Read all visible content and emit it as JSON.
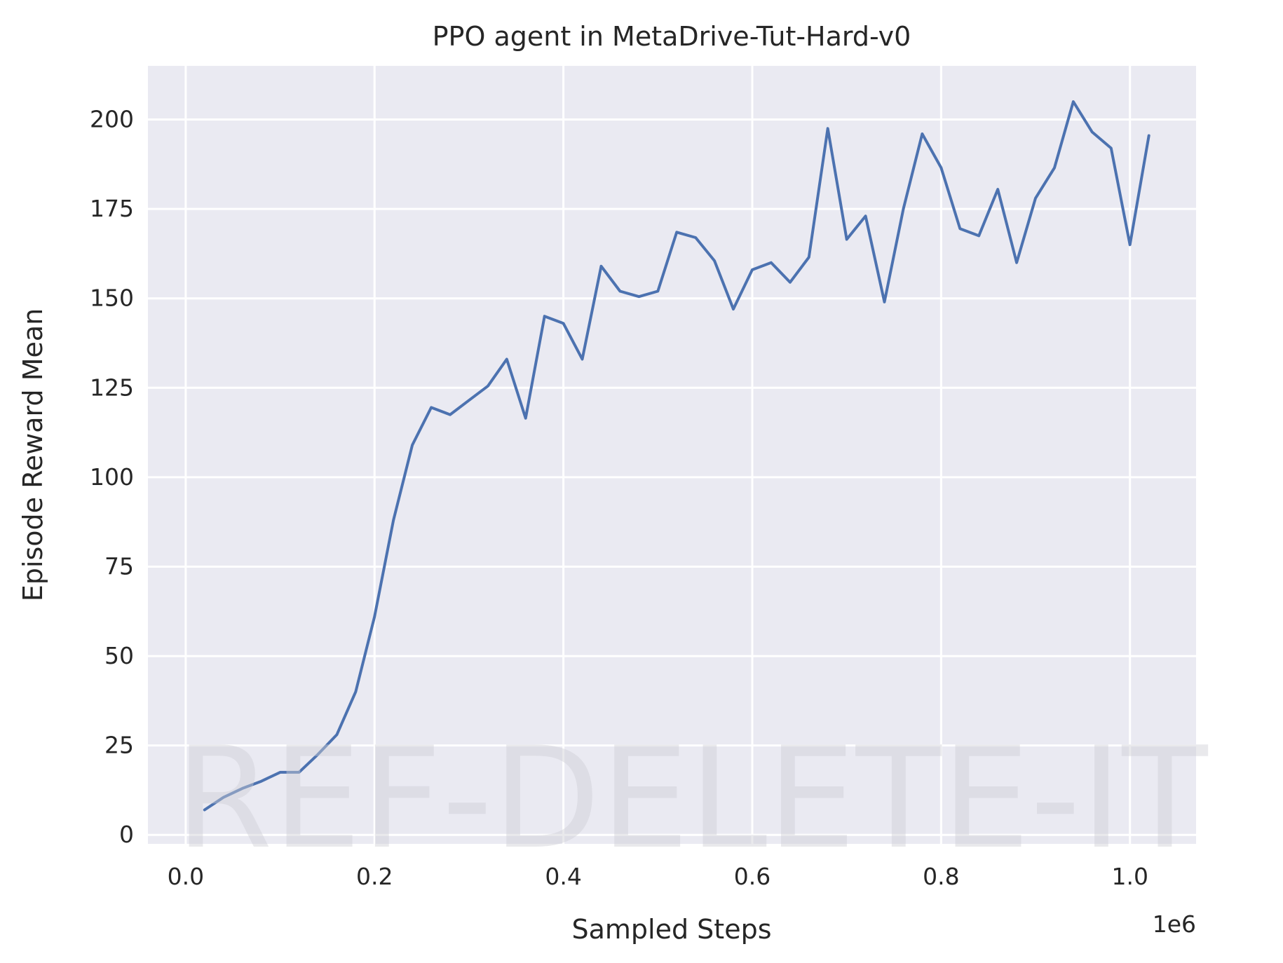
{
  "chart_data": {
    "type": "line",
    "title": "PPO agent in MetaDrive-Tut-Hard-v0",
    "xlabel": "Sampled Steps",
    "ylabel": "Episode Reward Mean",
    "x_offset_label": "1e6",
    "xlim": [
      -0.04,
      1.07
    ],
    "ylim": [
      -2.5,
      215
    ],
    "xticks": [
      0.0,
      0.2,
      0.4,
      0.6,
      0.8,
      1.0
    ],
    "xtick_labels": [
      "0.0",
      "0.2",
      "0.4",
      "0.6",
      "0.8",
      "1.0"
    ],
    "yticks": [
      0,
      25,
      50,
      75,
      100,
      125,
      150,
      175,
      200
    ],
    "ytick_labels": [
      "0",
      "25",
      "50",
      "75",
      "100",
      "125",
      "150",
      "175",
      "200"
    ],
    "grid": true,
    "background_color": "#eaeaf2",
    "grid_color": "#ffffff",
    "line_color": "#4c72b0",
    "watermark": "REF-DELETE-IT",
    "series": [
      {
        "x": [
          0.02,
          0.04,
          0.06,
          0.08,
          0.1,
          0.12,
          0.14,
          0.16,
          0.18,
          0.2,
          0.22,
          0.24,
          0.26,
          0.28,
          0.3,
          0.32,
          0.34,
          0.36,
          0.38,
          0.4,
          0.42,
          0.44,
          0.46,
          0.48,
          0.5,
          0.52,
          0.54,
          0.56,
          0.58,
          0.6,
          0.62,
          0.64,
          0.66,
          0.68,
          0.7,
          0.72,
          0.74,
          0.76,
          0.78,
          0.8,
          0.82,
          0.84,
          0.86,
          0.88,
          0.9,
          0.92,
          0.94,
          0.96,
          0.98,
          1.0,
          1.02
        ],
        "y": [
          7,
          10.5,
          13,
          15,
          17.5,
          17.5,
          22.5,
          28,
          40,
          61,
          88,
          109,
          119.5,
          117.5,
          121.5,
          125.5,
          133,
          116.5,
          145,
          143,
          133,
          159,
          152,
          150.5,
          152,
          168.5,
          167,
          160.5,
          147,
          158,
          160,
          154.5,
          161.5,
          197.5,
          166.5,
          173,
          149,
          175,
          196,
          186.5,
          169.5,
          167.5,
          180.5,
          160,
          178,
          186.5,
          205,
          196.5,
          192,
          165,
          195.5
        ]
      }
    ]
  }
}
